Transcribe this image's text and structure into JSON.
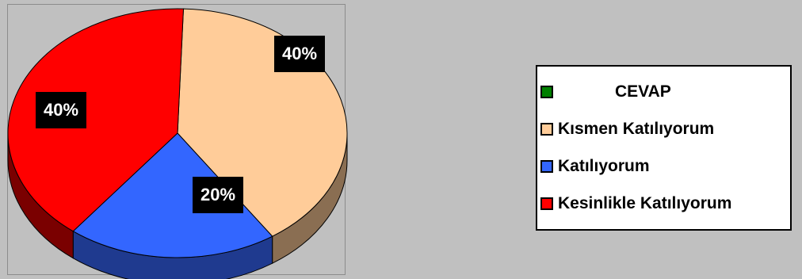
{
  "chart_data": {
    "type": "pie",
    "title": "",
    "legend_title": "CEVAP",
    "legend_placement": "right",
    "three_d": true,
    "slices": [
      {
        "label": "Kısmen Katılıyorum",
        "value": 40,
        "display": "40%",
        "color": "#ffcc99",
        "side_color": "#8a6e52"
      },
      {
        "label": "Katılıyorum",
        "value": 20,
        "display": "20%",
        "color": "#3366ff",
        "side_color": "#1f3a8f"
      },
      {
        "label": "Kesinlikle Katılıyorum",
        "value": 40,
        "display": "40%",
        "color": "#ff0000",
        "side_color": "#7a0000"
      }
    ],
    "legend": [
      {
        "label": "CEVAP",
        "color": "#008000"
      },
      {
        "label": "Kısmen Katılıyorum",
        "color": "#ffcc99"
      },
      {
        "label": "Katılıyorum",
        "color": "#3366ff"
      },
      {
        "label": "Kesinlikle Katılıyorum",
        "color": "#ff0000"
      }
    ]
  }
}
